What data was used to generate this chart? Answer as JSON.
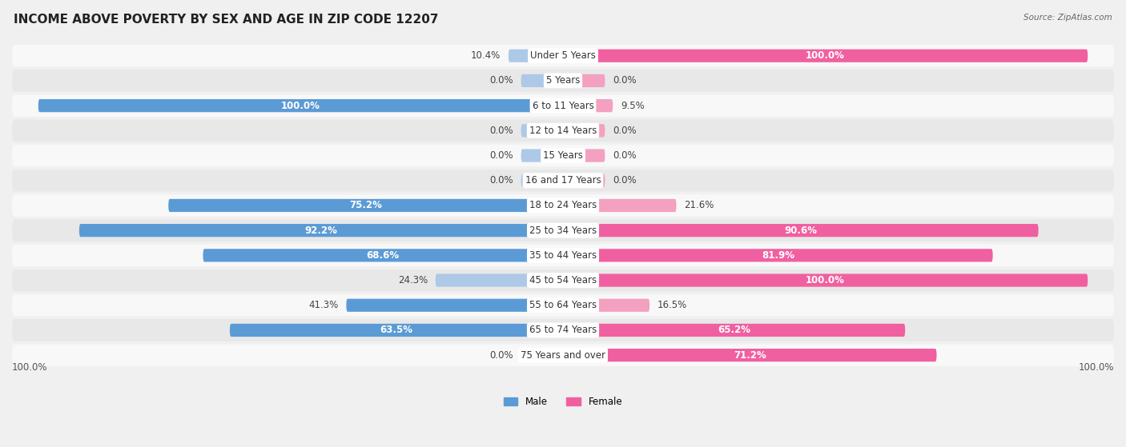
{
  "title": "INCOME ABOVE POVERTY BY SEX AND AGE IN ZIP CODE 12207",
  "source": "Source: ZipAtlas.com",
  "categories": [
    "Under 5 Years",
    "5 Years",
    "6 to 11 Years",
    "12 to 14 Years",
    "15 Years",
    "16 and 17 Years",
    "18 to 24 Years",
    "25 to 34 Years",
    "35 to 44 Years",
    "45 to 54 Years",
    "55 to 64 Years",
    "65 to 74 Years",
    "75 Years and over"
  ],
  "male_values": [
    10.4,
    0.0,
    100.0,
    0.0,
    0.0,
    0.0,
    75.2,
    92.2,
    68.6,
    24.3,
    41.3,
    63.5,
    0.0
  ],
  "female_values": [
    100.0,
    0.0,
    9.5,
    0.0,
    0.0,
    0.0,
    21.6,
    90.6,
    81.9,
    100.0,
    16.5,
    65.2,
    71.2
  ],
  "male_color_dark": "#5B9BD5",
  "male_color_light": "#AEC9E8",
  "female_color_dark": "#F060A0",
  "female_color_light": "#F4A0C0",
  "male_label": "Male",
  "female_label": "Female",
  "background_color": "#f0f0f0",
  "row_bg_odd": "#f8f8f8",
  "row_bg_even": "#e8e8e8",
  "title_fontsize": 11,
  "label_fontsize": 8.5,
  "bar_height": 0.52,
  "x_axis_label_left": "100.0%",
  "x_axis_label_right": "100.0%"
}
